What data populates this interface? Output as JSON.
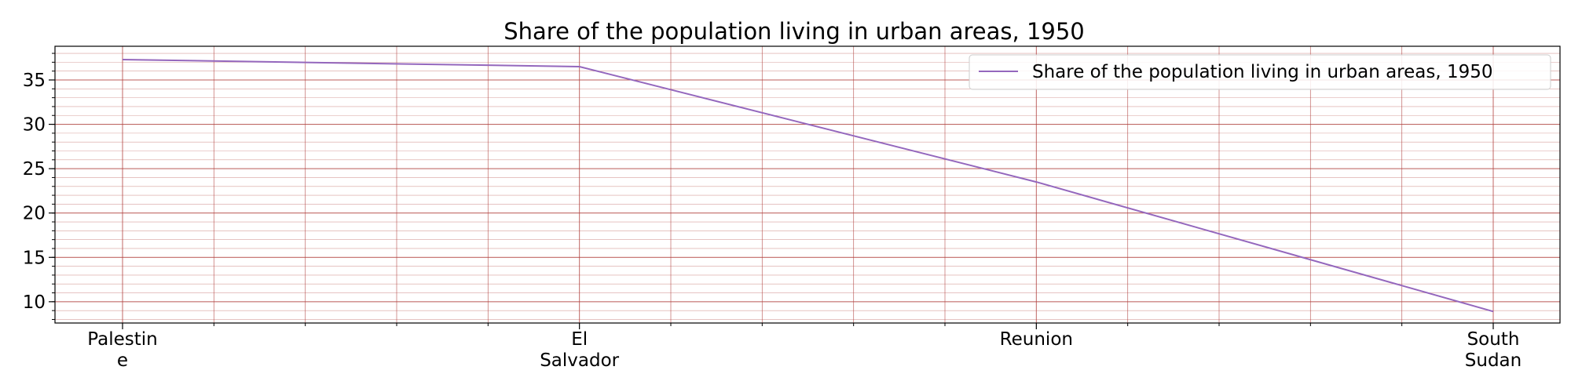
{
  "chart_data": {
    "type": "line",
    "title": "Share of the population living in urban areas, 1950",
    "xlabel": "",
    "ylabel": "",
    "categories": [
      "Palestine",
      "El Salvador",
      "Reunion",
      "South Sudan"
    ],
    "category_tick_labels": [
      [
        "Palestin",
        "e"
      ],
      [
        "El",
        "Salvador"
      ],
      [
        "Reunion"
      ],
      [
        "South",
        "Sudan"
      ]
    ],
    "series": [
      {
        "name": "Share of the population living in urban areas, 1950",
        "values": [
          37.3,
          36.5,
          23.5,
          8.9
        ],
        "color": "#9467bd"
      }
    ],
    "ylim": [
      7.6,
      38.8
    ],
    "yticks": [
      10,
      15,
      20,
      25,
      30,
      35
    ],
    "grid": true,
    "grid_color": "#b0413e",
    "legend_position": "upper right"
  }
}
